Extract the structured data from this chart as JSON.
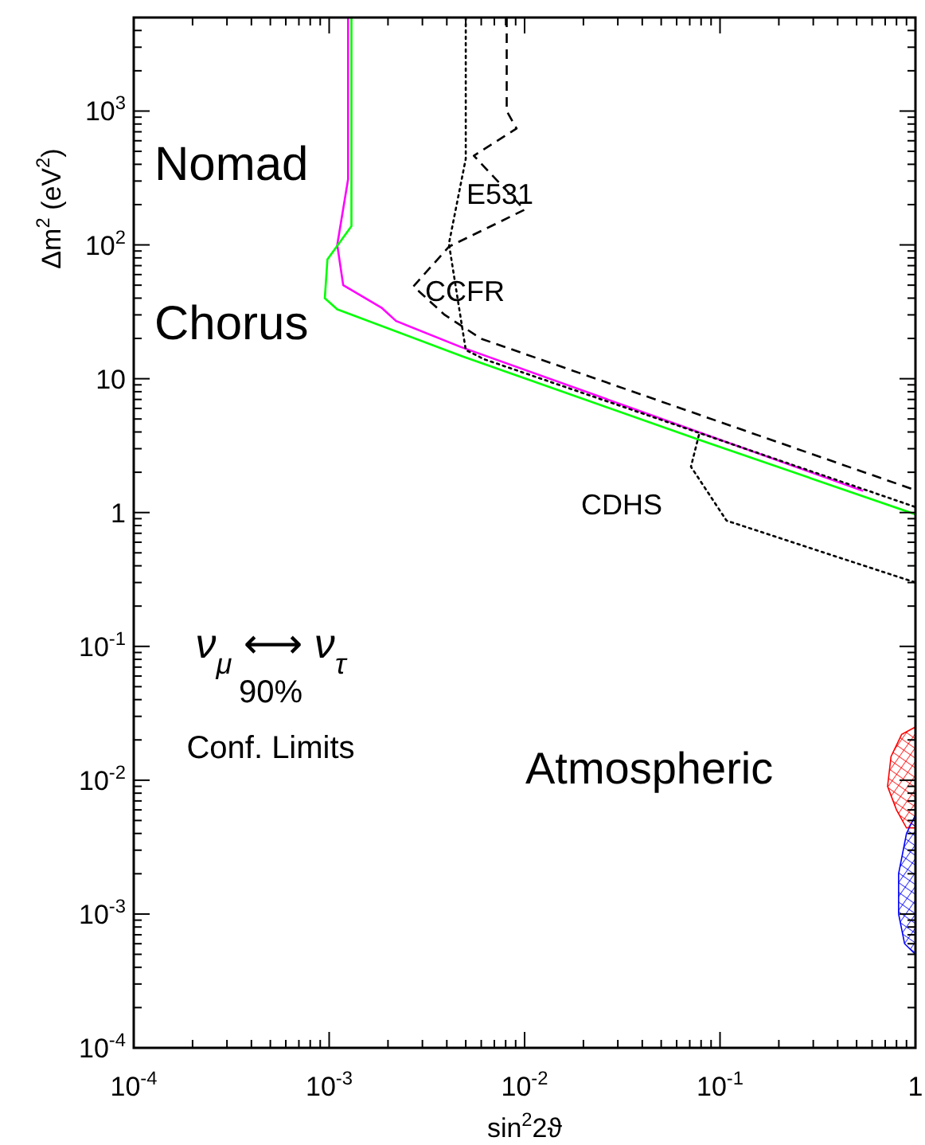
{
  "chart_data": {
    "type": "line",
    "xlabel": "sin$^{2}$2ϑ",
    "ylabel": "Δm$^{2}$ (eV$^{2}$)",
    "log": "xy",
    "xlim": [
      0.0001,
      1
    ],
    "ylim": [
      0.0001,
      5000
    ],
    "xticks": [
      {
        "value": 0.0001,
        "label": "10$^{-4}$"
      },
      {
        "value": 0.0002,
        "label": null
      },
      {
        "value": 0.0003,
        "label": null
      },
      {
        "value": 0.0004,
        "label": null
      },
      {
        "value": 0.0005,
        "label": null
      },
      {
        "value": 0.0006,
        "label": null
      },
      {
        "value": 0.0007,
        "label": null
      },
      {
        "value": 0.0008,
        "label": null
      },
      {
        "value": 0.0009,
        "label": null
      },
      {
        "value": 0.001,
        "label": "10$^{-3}$"
      },
      {
        "value": 0.002,
        "label": null
      },
      {
        "value": 0.003,
        "label": null
      },
      {
        "value": 0.004,
        "label": null
      },
      {
        "value": 0.005,
        "label": null
      },
      {
        "value": 0.006,
        "label": null
      },
      {
        "value": 0.007,
        "label": null
      },
      {
        "value": 0.008,
        "label": null
      },
      {
        "value": 0.009,
        "label": null
      },
      {
        "value": 0.01,
        "label": "10$^{-2}$"
      },
      {
        "value": 0.02,
        "label": null
      },
      {
        "value": 0.03,
        "label": null
      },
      {
        "value": 0.04,
        "label": null
      },
      {
        "value": 0.05,
        "label": null
      },
      {
        "value": 0.06,
        "label": null
      },
      {
        "value": 0.07,
        "label": null
      },
      {
        "value": 0.08,
        "label": null
      },
      {
        "value": 0.09,
        "label": null
      },
      {
        "value": 0.1,
        "label": "10$^{-1}$"
      },
      {
        "value": 0.2,
        "label": null
      },
      {
        "value": 0.3,
        "label": null
      },
      {
        "value": 0.4,
        "label": null
      },
      {
        "value": 0.5,
        "label": null
      },
      {
        "value": 0.6,
        "label": null
      },
      {
        "value": 0.7,
        "label": null
      },
      {
        "value": 0.8,
        "label": null
      },
      {
        "value": 0.9,
        "label": null
      },
      1
    ],
    "yticks": [
      {
        "value": 0.0001,
        "label": "10$^{-4}$"
      },
      {
        "value": 0.0002,
        "label": null
      },
      {
        "value": 0.0003,
        "label": null
      },
      {
        "value": 0.0004,
        "label": null
      },
      {
        "value": 0.0005,
        "label": null
      },
      {
        "value": 0.0006,
        "label": null
      },
      {
        "value": 0.0007,
        "label": null
      },
      {
        "value": 0.0008,
        "label": null
      },
      {
        "value": 0.0009,
        "label": null
      },
      {
        "value": 0.001,
        "label": "10$^{-3}$"
      },
      {
        "value": 0.002,
        "label": null
      },
      {
        "value": 0.003,
        "label": null
      },
      {
        "value": 0.004,
        "label": null
      },
      {
        "value": 0.005,
        "label": null
      },
      {
        "value": 0.006,
        "label": null
      },
      {
        "value": 0.007,
        "label": null
      },
      {
        "value": 0.008,
        "label": null
      },
      {
        "value": 0.009,
        "label": null
      },
      {
        "value": 0.01,
        "label": "10$^{-2}$"
      },
      {
        "value": 0.02,
        "label": null
      },
      {
        "value": 0.03,
        "label": null
      },
      {
        "value": 0.04,
        "label": null
      },
      {
        "value": 0.05,
        "label": null
      },
      {
        "value": 0.06,
        "label": null
      },
      {
        "value": 0.07,
        "label": null
      },
      {
        "value": 0.08,
        "label": null
      },
      {
        "value": 0.09,
        "label": null
      },
      {
        "value": 0.1,
        "label": "10$^{-1}$"
      },
      {
        "value": 0.2,
        "label": null
      },
      {
        "value": 0.3,
        "label": null
      },
      {
        "value": 0.4,
        "label": null
      },
      {
        "value": 0.5,
        "label": null
      },
      {
        "value": 0.6,
        "label": null
      },
      {
        "value": 0.7,
        "label": null
      },
      {
        "value": 0.8,
        "label": null
      },
      {
        "value": 0.9,
        "label": null
      },
      1,
      {
        "value": 2,
        "label": null
      },
      {
        "value": 3,
        "label": null
      },
      {
        "value": 4,
        "label": null
      },
      {
        "value": 5,
        "label": null
      },
      {
        "value": 6,
        "label": null
      },
      {
        "value": 7,
        "label": null
      },
      {
        "value": 8,
        "label": null
      },
      {
        "value": 9,
        "label": null
      },
      10,
      {
        "value": 20,
        "label": null
      },
      {
        "value": 30,
        "label": null
      },
      {
        "value": 40,
        "label": null
      },
      {
        "value": 50,
        "label": null
      },
      {
        "value": 60,
        "label": null
      },
      {
        "value": 70,
        "label": null
      },
      {
        "value": 80,
        "label": null
      },
      {
        "value": 90,
        "label": null
      },
      {
        "value": 100,
        "label": "10$^{2}$"
      },
      {
        "value": 200,
        "label": null
      },
      {
        "value": 300,
        "label": null
      },
      {
        "value": 400,
        "label": null
      },
      {
        "value": 500,
        "label": null
      },
      {
        "value": 600,
        "label": null
      },
      {
        "value": 700,
        "label": null
      },
      {
        "value": 800,
        "label": null
      },
      {
        "value": 900,
        "label": null
      },
      {
        "value": 1000,
        "label": "10$^{3}$"
      },
      {
        "value": 2000,
        "label": null
      },
      {
        "value": 3000,
        "label": null
      },
      {
        "value": 4000,
        "label": null
      }
    ],
    "series": [
      {
        "name": "Nomad",
        "color": "#ff00ff",
        "line_style": "solid",
        "x": [
          0.00125,
          0.00125,
          0.0011,
          0.00118,
          0.00185,
          0.0022,
          0.0047,
          0.54
        ],
        "values": [
          5000,
          310,
          100,
          50,
          34,
          27,
          17.3,
          1.45
        ]
      },
      {
        "name": "Chorus",
        "color": "#00ff00",
        "line_style": "solid",
        "x": [
          0.0013,
          0.0013,
          0.00098,
          0.00095,
          0.0011,
          0.0048,
          0.078,
          1
        ],
        "values": [
          5000,
          138,
          78,
          40,
          33,
          14.7,
          3.5,
          0.97
        ]
      },
      {
        "name": "CCFR",
        "color": "#000000",
        "line_style": "dashed",
        "x": [
          0.0081,
          0.0081,
          0.0091,
          0.0055,
          0.01,
          0.0041,
          0.0027,
          0.0039,
          0.006,
          1
        ],
        "values": [
          5000,
          1000,
          740,
          464,
          183,
          97,
          49,
          30,
          19.9,
          1.47
        ]
      },
      {
        "name": "E531",
        "color": "#000000",
        "line_style": "dotted",
        "x": [
          0.005,
          0.005,
          0.0041,
          0.005,
          0.0062,
          1
        ],
        "values": [
          5000,
          440,
          102,
          16.4,
          14,
          1.1
        ]
      },
      {
        "name": "CDHS",
        "color": "#000000",
        "line_style": "dotted",
        "x": [
          0.078,
          0.071,
          0.108,
          1
        ],
        "values": [
          3.8,
          2.2,
          0.87,
          0.3
        ]
      },
      {
        "type": "area",
        "color": "#ff0000",
        "x": [
          1,
          0.85,
          0.75,
          0.72,
          0.8,
          0.9,
          1
        ],
        "values": [
          0.025,
          0.022,
          0.015,
          0.009,
          0.006,
          0.0044,
          0.0044
        ]
      },
      {
        "type": "area",
        "color": "#0000ff",
        "x": [
          1,
          0.9,
          0.82,
          0.82,
          0.88,
          1
        ],
        "values": [
          0.0055,
          0.004,
          0.002,
          0.001,
          0.0006,
          0.0005
        ]
      }
    ],
    "annotations": [
      "Atmospheric",
      "ν$_{μ}$ ⟷ ν$_{τ}$",
      "90%",
      "Conf. Limits"
    ]
  }
}
